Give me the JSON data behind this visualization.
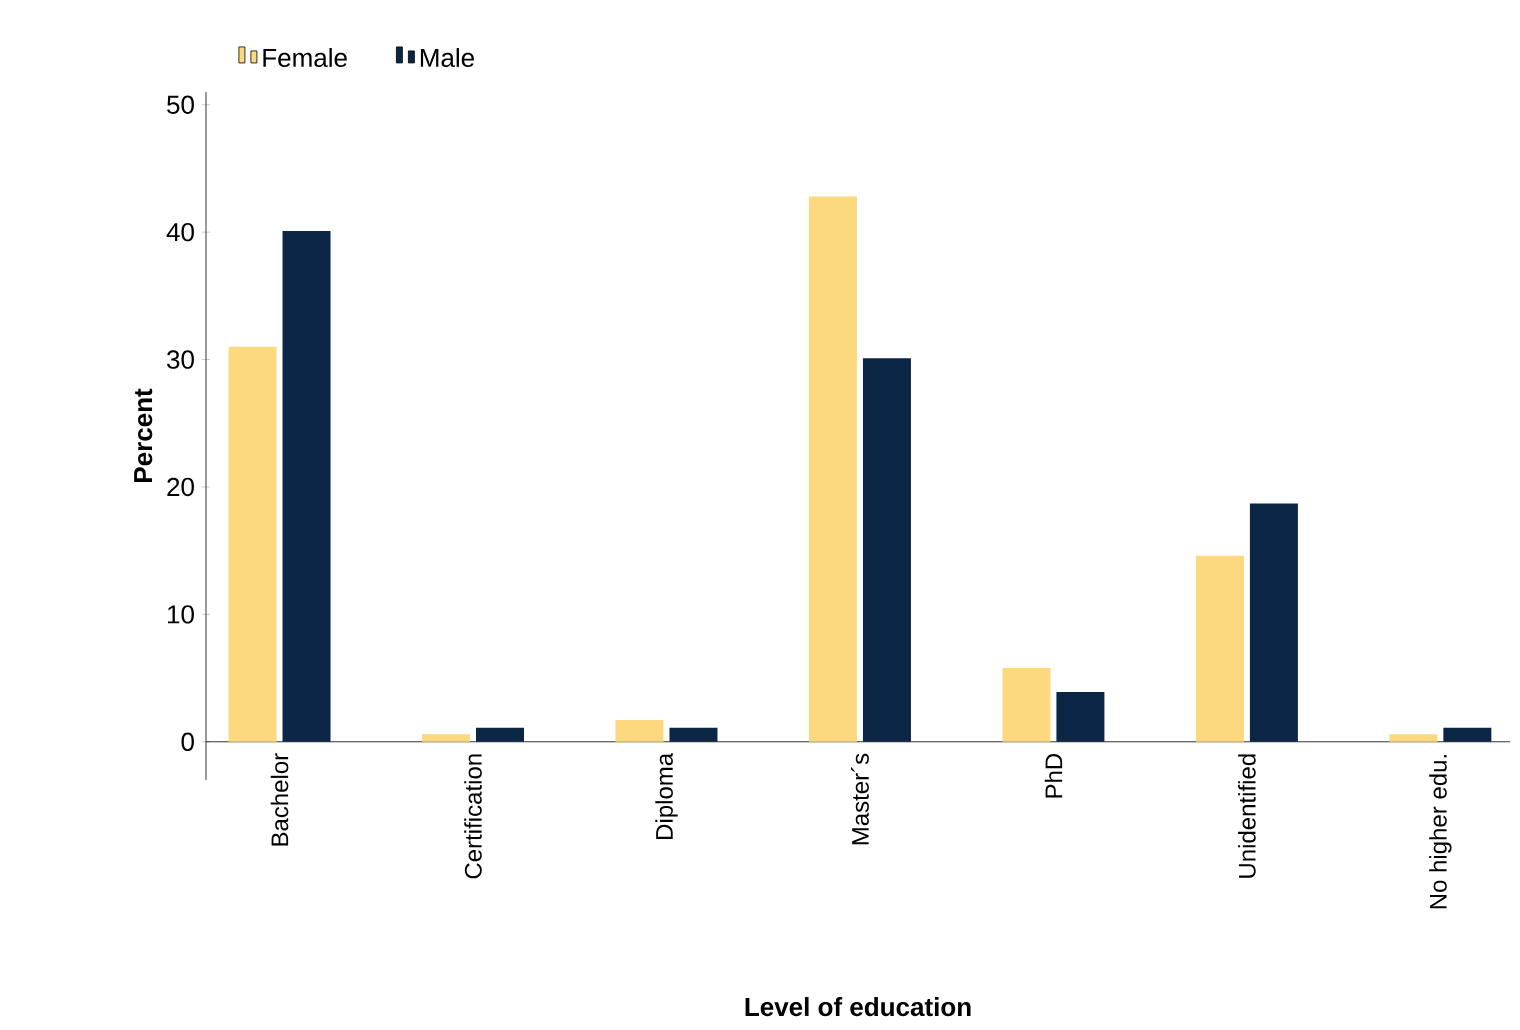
{
  "chart_data": {
    "type": "bar",
    "xlabel": "Level of education",
    "ylabel": "Percent",
    "categories": [
      "Bachelor",
      "Certification",
      "Diploma",
      "Master´s",
      "PhD",
      "Unidentified",
      "No higher edu."
    ],
    "series": [
      {
        "name": "Female",
        "color": "#fcd97f",
        "values": [
          31,
          0.6,
          1.7,
          42.8,
          5.8,
          14.6,
          0.6
        ]
      },
      {
        "name": "Male",
        "color": "#0b2545",
        "values": [
          40.1,
          1.1,
          1.1,
          30.1,
          3.9,
          18.7,
          1.1
        ]
      }
    ],
    "ylim": [
      -3,
      51
    ],
    "yticks": [
      0,
      10,
      20,
      30,
      40,
      50
    ],
    "legend": "top left",
    "grid": false
  }
}
